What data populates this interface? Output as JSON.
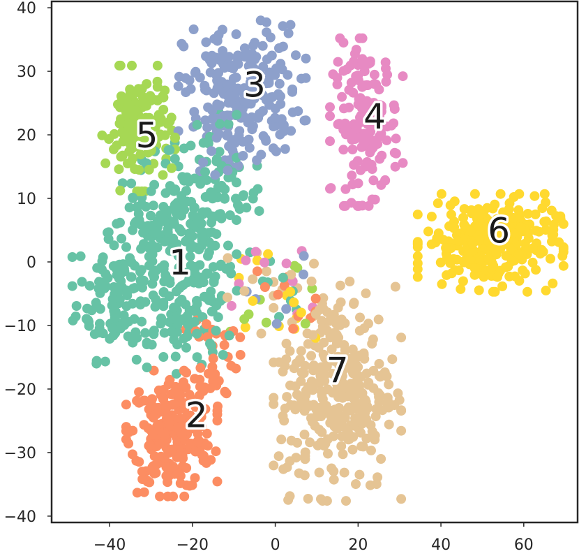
{
  "chart_data": {
    "type": "scatter",
    "title": "",
    "xlabel": "",
    "ylabel": "",
    "xlim": [
      -54,
      73
    ],
    "ylim": [
      -41,
      41
    ],
    "x_ticks": [
      -40,
      -20,
      0,
      20,
      40,
      60
    ],
    "y_ticks": [
      -40,
      -30,
      -20,
      -10,
      0,
      10,
      20,
      30,
      40
    ],
    "x_tick_labels": [
      "−40",
      "−20",
      "0",
      "20",
      "40",
      "60"
    ],
    "y_tick_labels": [
      "−40",
      "−30",
      "−20",
      "−10",
      "0",
      "10",
      "20",
      "30",
      "40"
    ],
    "grid": false,
    "point_count_note_free": true,
    "clusters": [
      {
        "label": "1",
        "label_xy": [
          -23,
          0
        ],
        "color": "#66c2a5",
        "blobs": [
          {
            "c": [
              -22,
              0
            ],
            "s": [
              6,
              8
            ],
            "n": 140
          },
          {
            "c": [
              -38,
              -5
            ],
            "s": [
              5,
              5
            ],
            "n": 120
          },
          {
            "c": [
              -15,
              10
            ],
            "s": [
              6,
              6
            ],
            "n": 90
          },
          {
            "c": [
              -30,
              5
            ],
            "s": [
              5,
              5
            ],
            "n": 60
          },
          {
            "c": [
              -20,
              -10
            ],
            "s": [
              5,
              3
            ],
            "n": 40
          }
        ]
      },
      {
        "label": "2",
        "label_xy": [
          -19,
          -24
        ],
        "color": "#fc8d62",
        "blobs": [
          {
            "c": [
              -25,
              -27
            ],
            "s": [
              5,
              4.5
            ],
            "n": 240
          },
          {
            "c": [
              -15,
              -15
            ],
            "s": [
              3,
              4
            ],
            "n": 45
          }
        ]
      },
      {
        "label": "3",
        "label_xy": [
          -5,
          28
        ],
        "color": "#8da0cb",
        "blobs": [
          {
            "c": [
              -8,
              27
            ],
            "s": [
              7,
              5
            ],
            "n": 200
          },
          {
            "c": [
              -12,
              20
            ],
            "s": [
              4,
              3
            ],
            "n": 40
          }
        ]
      },
      {
        "label": "4",
        "label_xy": [
          24,
          23
        ],
        "color": "#e78ac3",
        "blobs": [
          {
            "c": [
              22,
              22
            ],
            "s": [
              4,
              6
            ],
            "n": 160
          }
        ]
      },
      {
        "label": "5",
        "label_xy": [
          -31,
          20
        ],
        "color": "#a6d854",
        "blobs": [
          {
            "c": [
              -33,
              21
            ],
            "s": [
              4,
              4.5
            ],
            "n": 130
          }
        ]
      },
      {
        "label": "6",
        "label_xy": [
          54,
          5
        ],
        "color": "#ffd92f",
        "blobs": [
          {
            "c": [
              52,
              3
            ],
            "s": [
              8,
              3.5
            ],
            "n": 280
          }
        ]
      },
      {
        "label": "7",
        "label_xy": [
          15,
          -17
        ],
        "color": "#e5c494",
        "blobs": [
          {
            "c": [
              15,
              -20
            ],
            "s": [
              7,
              8
            ],
            "n": 320
          }
        ]
      }
    ],
    "label_style": {
      "text_color": "#1a1a1a",
      "halo_color": "#ffffff"
    },
    "axis_color": "#262626",
    "point_radius_note": "uniform"
  }
}
